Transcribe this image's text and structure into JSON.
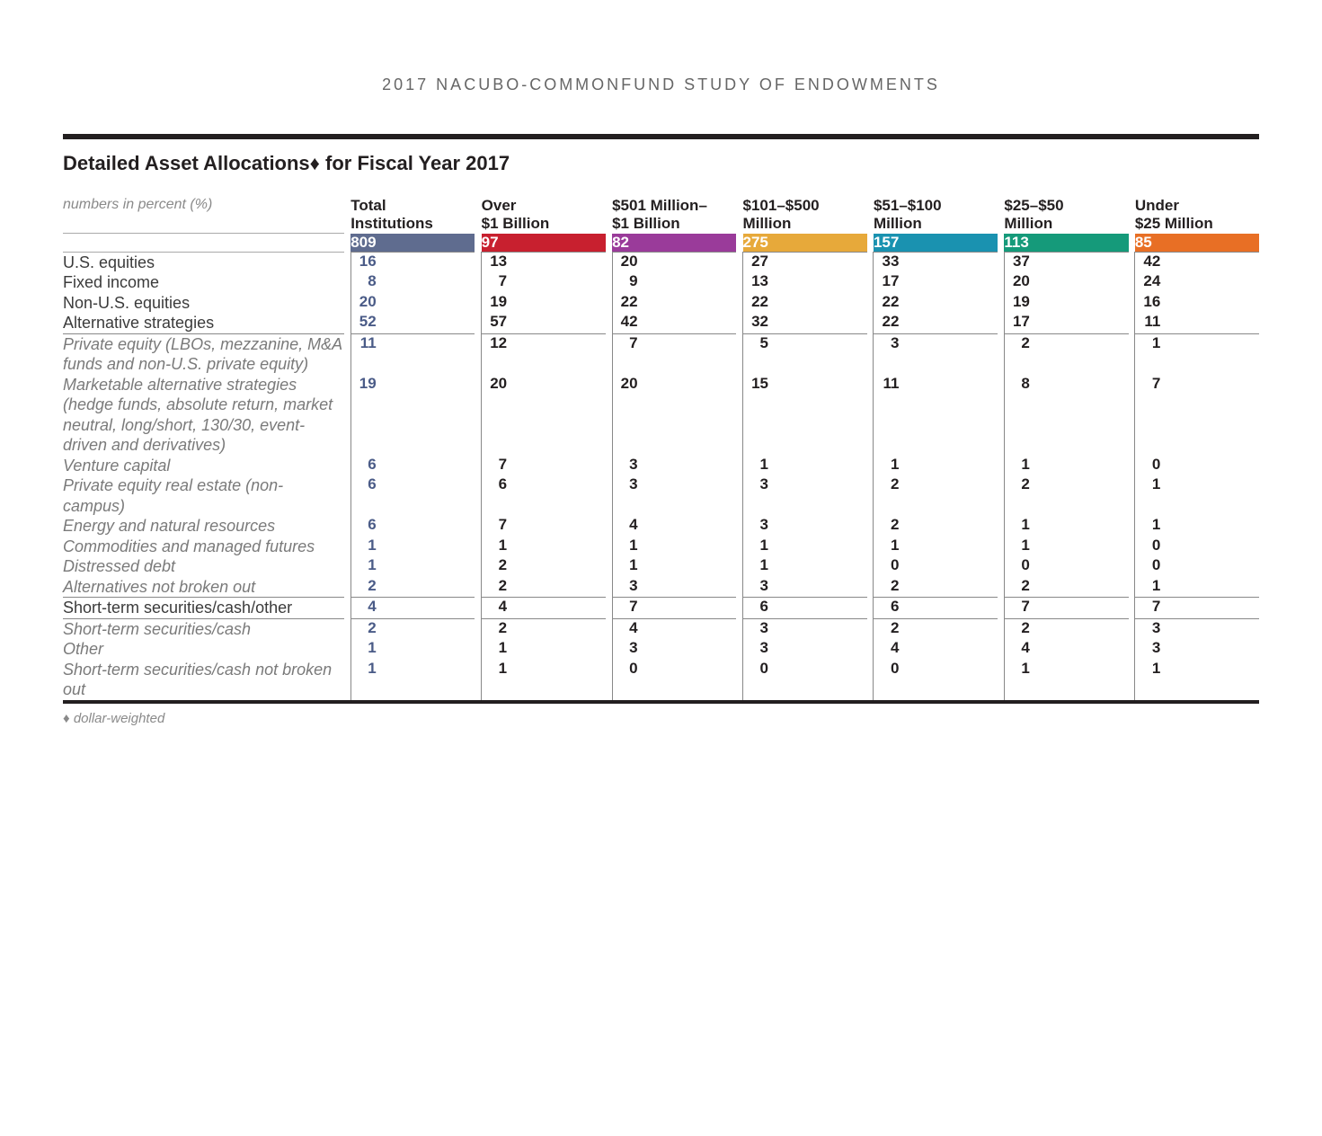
{
  "report_header": "2017 NACUBO-COMMONFUND STUDY OF ENDOWMENTS",
  "table_title": "Detailed Asset Allocations",
  "dagger": "♦",
  "table_title_suffix": " for Fiscal Year 2017",
  "units_note": "numbers in percent (%)",
  "footnote": "dollar-weighted",
  "colors": {
    "rule": "#231f20",
    "text": "#231f20",
    "muted": "#8a8a8a",
    "total_value": "#4a5b87",
    "column_fills": [
      "#5f6c8f",
      "#c8202f",
      "#9a3b9a",
      "#e7a93a",
      "#1a92b0",
      "#159a7a",
      "#e86f25"
    ]
  },
  "typography": {
    "header_fontsize": 18,
    "title_fontsize": 22,
    "head_fontsize": 17,
    "cell_fontsize": 17,
    "label_fontsize": 18,
    "footnote_fontsize": 15
  },
  "columns": [
    {
      "key": "total",
      "label_l1": "Total",
      "label_l2": "Institutions",
      "count": "809"
    },
    {
      "key": "over1b",
      "label_l1": "Over",
      "label_l2": "$1 Billion",
      "count": "97"
    },
    {
      "key": "501m1b",
      "label_l1": "$501 Million–",
      "label_l2": "$1 Billion",
      "count": "82"
    },
    {
      "key": "101_500",
      "label_l1": "$101–$500",
      "label_l2": "Million",
      "count": "275"
    },
    {
      "key": "51_100",
      "label_l1": "$51–$100",
      "label_l2": "Million",
      "count": "157"
    },
    {
      "key": "25_50",
      "label_l1": "$25–$50",
      "label_l2": "Million",
      "count": "113"
    },
    {
      "key": "u25",
      "label_l1": "Under",
      "label_l2": "$25 Million",
      "count": "85"
    }
  ],
  "rows": [
    {
      "label": "U.S. equities",
      "sub": false,
      "rule": true,
      "v": [
        "16",
        "13",
        "20",
        "27",
        "33",
        "37",
        "42"
      ]
    },
    {
      "label": "Fixed income",
      "sub": false,
      "rule": false,
      "v": [
        "8",
        "7",
        "9",
        "13",
        "17",
        "20",
        "24"
      ]
    },
    {
      "label": "Non-U.S. equities",
      "sub": false,
      "rule": false,
      "v": [
        "20",
        "19",
        "22",
        "22",
        "22",
        "19",
        "16"
      ]
    },
    {
      "label": "Alternative strategies",
      "sub": false,
      "rule": false,
      "v": [
        "52",
        "57",
        "42",
        "32",
        "22",
        "17",
        "11"
      ]
    },
    {
      "label": "Private equity (LBOs, mezzanine, M&A funds and non-U.S. private equity)",
      "sub": true,
      "rule": true,
      "v": [
        "11",
        "12",
        "7",
        "5",
        "3",
        "2",
        "1"
      ]
    },
    {
      "label": "Marketable alternative strategies (hedge funds, absolute return, market neutral, long/short, 130/30, event-driven and derivatives)",
      "sub": true,
      "rule": false,
      "v": [
        "19",
        "20",
        "20",
        "15",
        "11",
        "8",
        "7"
      ]
    },
    {
      "label": "Venture capital",
      "sub": true,
      "rule": false,
      "v": [
        "6",
        "7",
        "3",
        "1",
        "1",
        "1",
        "0"
      ]
    },
    {
      "label": "Private equity real estate (non-campus)",
      "sub": true,
      "rule": false,
      "v": [
        "6",
        "6",
        "3",
        "3",
        "2",
        "2",
        "1"
      ]
    },
    {
      "label": "Energy and natural resources",
      "sub": true,
      "rule": false,
      "v": [
        "6",
        "7",
        "4",
        "3",
        "2",
        "1",
        "1"
      ]
    },
    {
      "label": "Commodities and managed futures",
      "sub": true,
      "rule": false,
      "v": [
        "1",
        "1",
        "1",
        "1",
        "1",
        "1",
        "0"
      ]
    },
    {
      "label": "Distressed debt",
      "sub": true,
      "rule": false,
      "v": [
        "1",
        "2",
        "1",
        "1",
        "0",
        "0",
        "0"
      ]
    },
    {
      "label": "Alternatives not broken out",
      "sub": true,
      "rule": false,
      "v": [
        "2",
        "2",
        "3",
        "3",
        "2",
        "2",
        "1"
      ]
    },
    {
      "label": "Short-term securities/cash/other",
      "sub": false,
      "rule": true,
      "v": [
        "4",
        "4",
        "7",
        "6",
        "6",
        "7",
        "7"
      ]
    },
    {
      "label": "Short-term securities/cash",
      "sub": true,
      "rule": true,
      "v": [
        "2",
        "2",
        "4",
        "3",
        "2",
        "2",
        "3"
      ]
    },
    {
      "label": "Other",
      "sub": true,
      "rule": false,
      "v": [
        "1",
        "1",
        "3",
        "3",
        "4",
        "4",
        "3"
      ]
    },
    {
      "label": "Short-term securities/cash not broken out",
      "sub": true,
      "rule": false,
      "v": [
        "1",
        "1",
        "0",
        "0",
        "0",
        "1",
        "1"
      ]
    }
  ]
}
